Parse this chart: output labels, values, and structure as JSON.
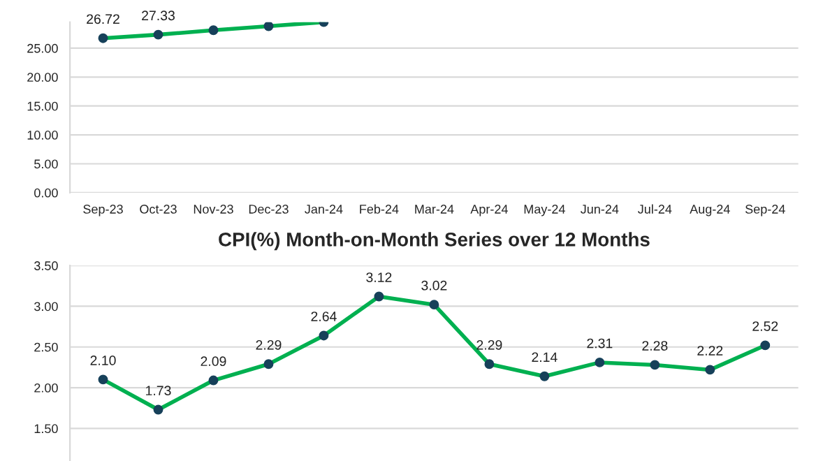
{
  "chart_data": [
    {
      "type": "line",
      "categories": [
        "Sep-23",
        "Oct-23",
        "Nov-23",
        "Dec-23",
        "Jan-24",
        "Feb-24",
        "Mar-24",
        "Apr-24",
        "May-24",
        "Jun-24",
        "Jul-24",
        "Aug-24",
        "Sep-24"
      ],
      "series": [
        {
          "color": "#00b050",
          "values": [
            26.72,
            27.33,
            28.1,
            28.8,
            29.5,
            null,
            null,
            null,
            null,
            null,
            null,
            null,
            null
          ],
          "value_labels": [
            "26.72",
            "27.33",
            null,
            null,
            null,
            null,
            null,
            null,
            null,
            null,
            null,
            null,
            null
          ]
        }
      ],
      "ylim": [
        0,
        29.5
      ],
      "yticks": [
        {
          "value": 0,
          "label": "0.00"
        },
        {
          "value": 5,
          "label": "5.00"
        },
        {
          "value": 10,
          "label": "10.00"
        },
        {
          "value": 15,
          "label": "15.00"
        },
        {
          "value": 20,
          "label": "20.00"
        },
        {
          "value": 25,
          "label": "25.00"
        }
      ],
      "grid": "y",
      "marker": "circle",
      "line_style": "solid"
    },
    {
      "type": "line",
      "title": "CPI(%) Month-on-Month Series over 12 Months",
      "categories": [
        null,
        null,
        null,
        null,
        null,
        null,
        null,
        null,
        null,
        null,
        null,
        null,
        null
      ],
      "series": [
        {
          "color": "#00b050",
          "values": [
            2.1,
            1.73,
            2.09,
            2.29,
            2.64,
            3.12,
            3.02,
            2.29,
            2.14,
            2.31,
            2.28,
            2.22,
            2.52
          ],
          "value_labels": [
            "2.10",
            "1.73",
            "2.09",
            "2.29",
            "2.64",
            "3.12",
            "3.02",
            "2.29",
            "2.14",
            "2.31",
            "2.28",
            "2.22",
            "2.52"
          ]
        }
      ],
      "ylim": [
        1.1,
        3.5
      ],
      "yticks": [
        {
          "value": 1.5,
          "label": "1.50"
        },
        {
          "value": 2,
          "label": "2.00"
        },
        {
          "value": 2.5,
          "label": "2.50"
        },
        {
          "value": 3,
          "label": "3.00"
        },
        {
          "value": 3.5,
          "label": "3.50"
        }
      ],
      "grid": "y",
      "marker": "circle",
      "line_style": "solid"
    }
  ]
}
